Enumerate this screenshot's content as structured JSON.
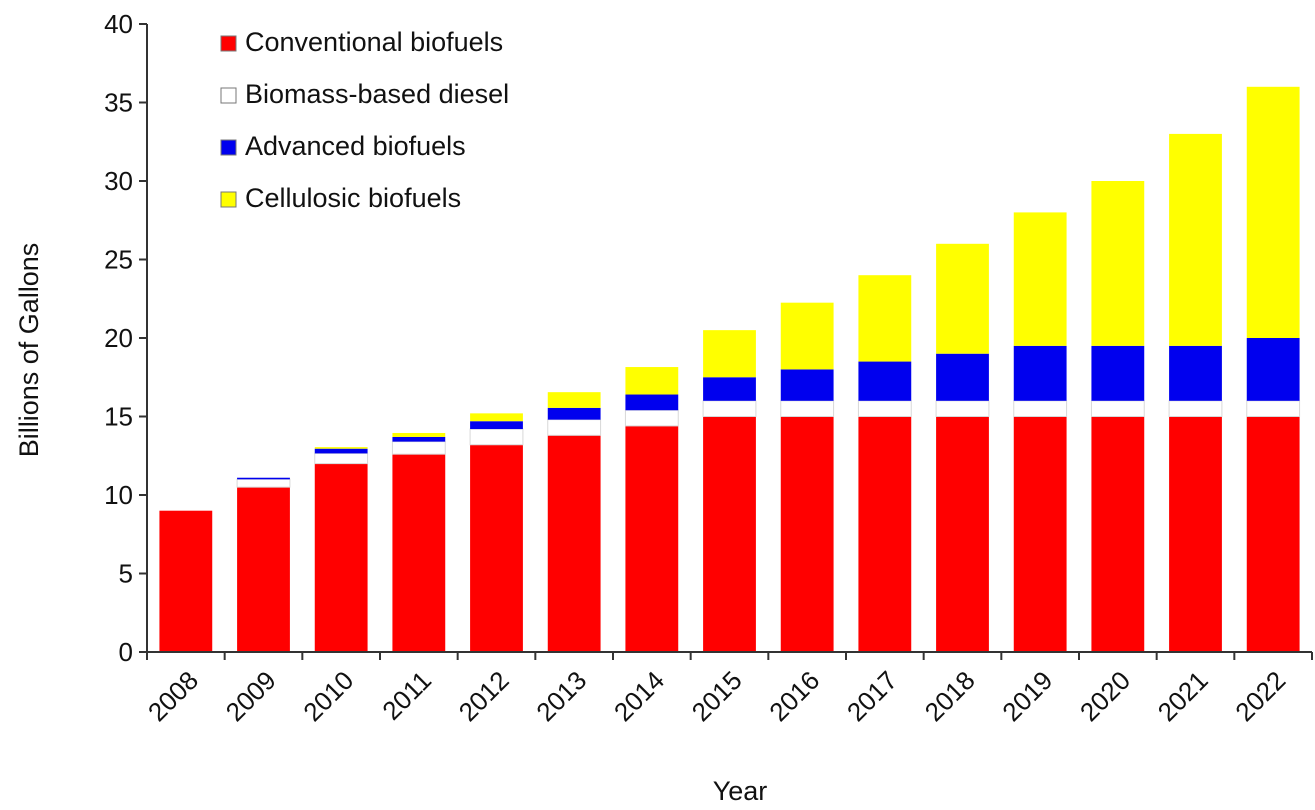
{
  "chart_data": {
    "type": "bar",
    "stacked": true,
    "xlabel": "Year",
    "ylabel": "Billions of Gallons",
    "ylim": [
      0,
      40
    ],
    "yticks": [
      0,
      5,
      10,
      15,
      20,
      25,
      30,
      35,
      40
    ],
    "grid": false,
    "legend_position": "top-left",
    "categories": [
      "2008",
      "2009",
      "2010",
      "2011",
      "2012",
      "2013",
      "2014",
      "2015",
      "2016",
      "2017",
      "2018",
      "2019",
      "2020",
      "2021",
      "2022"
    ],
    "series": [
      {
        "name": "Conventional biofuels",
        "color": "#ff0000",
        "values": [
          9.0,
          10.5,
          12.0,
          12.6,
          13.2,
          13.8,
          14.4,
          15.0,
          15.0,
          15.0,
          15.0,
          15.0,
          15.0,
          15.0,
          15.0
        ]
      },
      {
        "name": "Biomass-based diesel",
        "color": "#ffffff",
        "values": [
          0.0,
          0.5,
          0.65,
          0.8,
          1.0,
          1.0,
          1.0,
          1.0,
          1.0,
          1.0,
          1.0,
          1.0,
          1.0,
          1.0,
          1.0
        ]
      },
      {
        "name": "Advanced biofuels",
        "color": "#0000ee",
        "values": [
          0.0,
          0.1,
          0.3,
          0.3,
          0.5,
          0.75,
          1.0,
          1.5,
          2.0,
          2.5,
          3.0,
          3.5,
          3.5,
          3.5,
          4.0
        ]
      },
      {
        "name": "Cellulosic biofuels",
        "color": "#ffff00",
        "values": [
          0.0,
          0.0,
          0.1,
          0.25,
          0.5,
          1.0,
          1.75,
          3.0,
          4.25,
          5.5,
          7.0,
          8.5,
          10.5,
          13.5,
          16.0
        ]
      }
    ]
  }
}
